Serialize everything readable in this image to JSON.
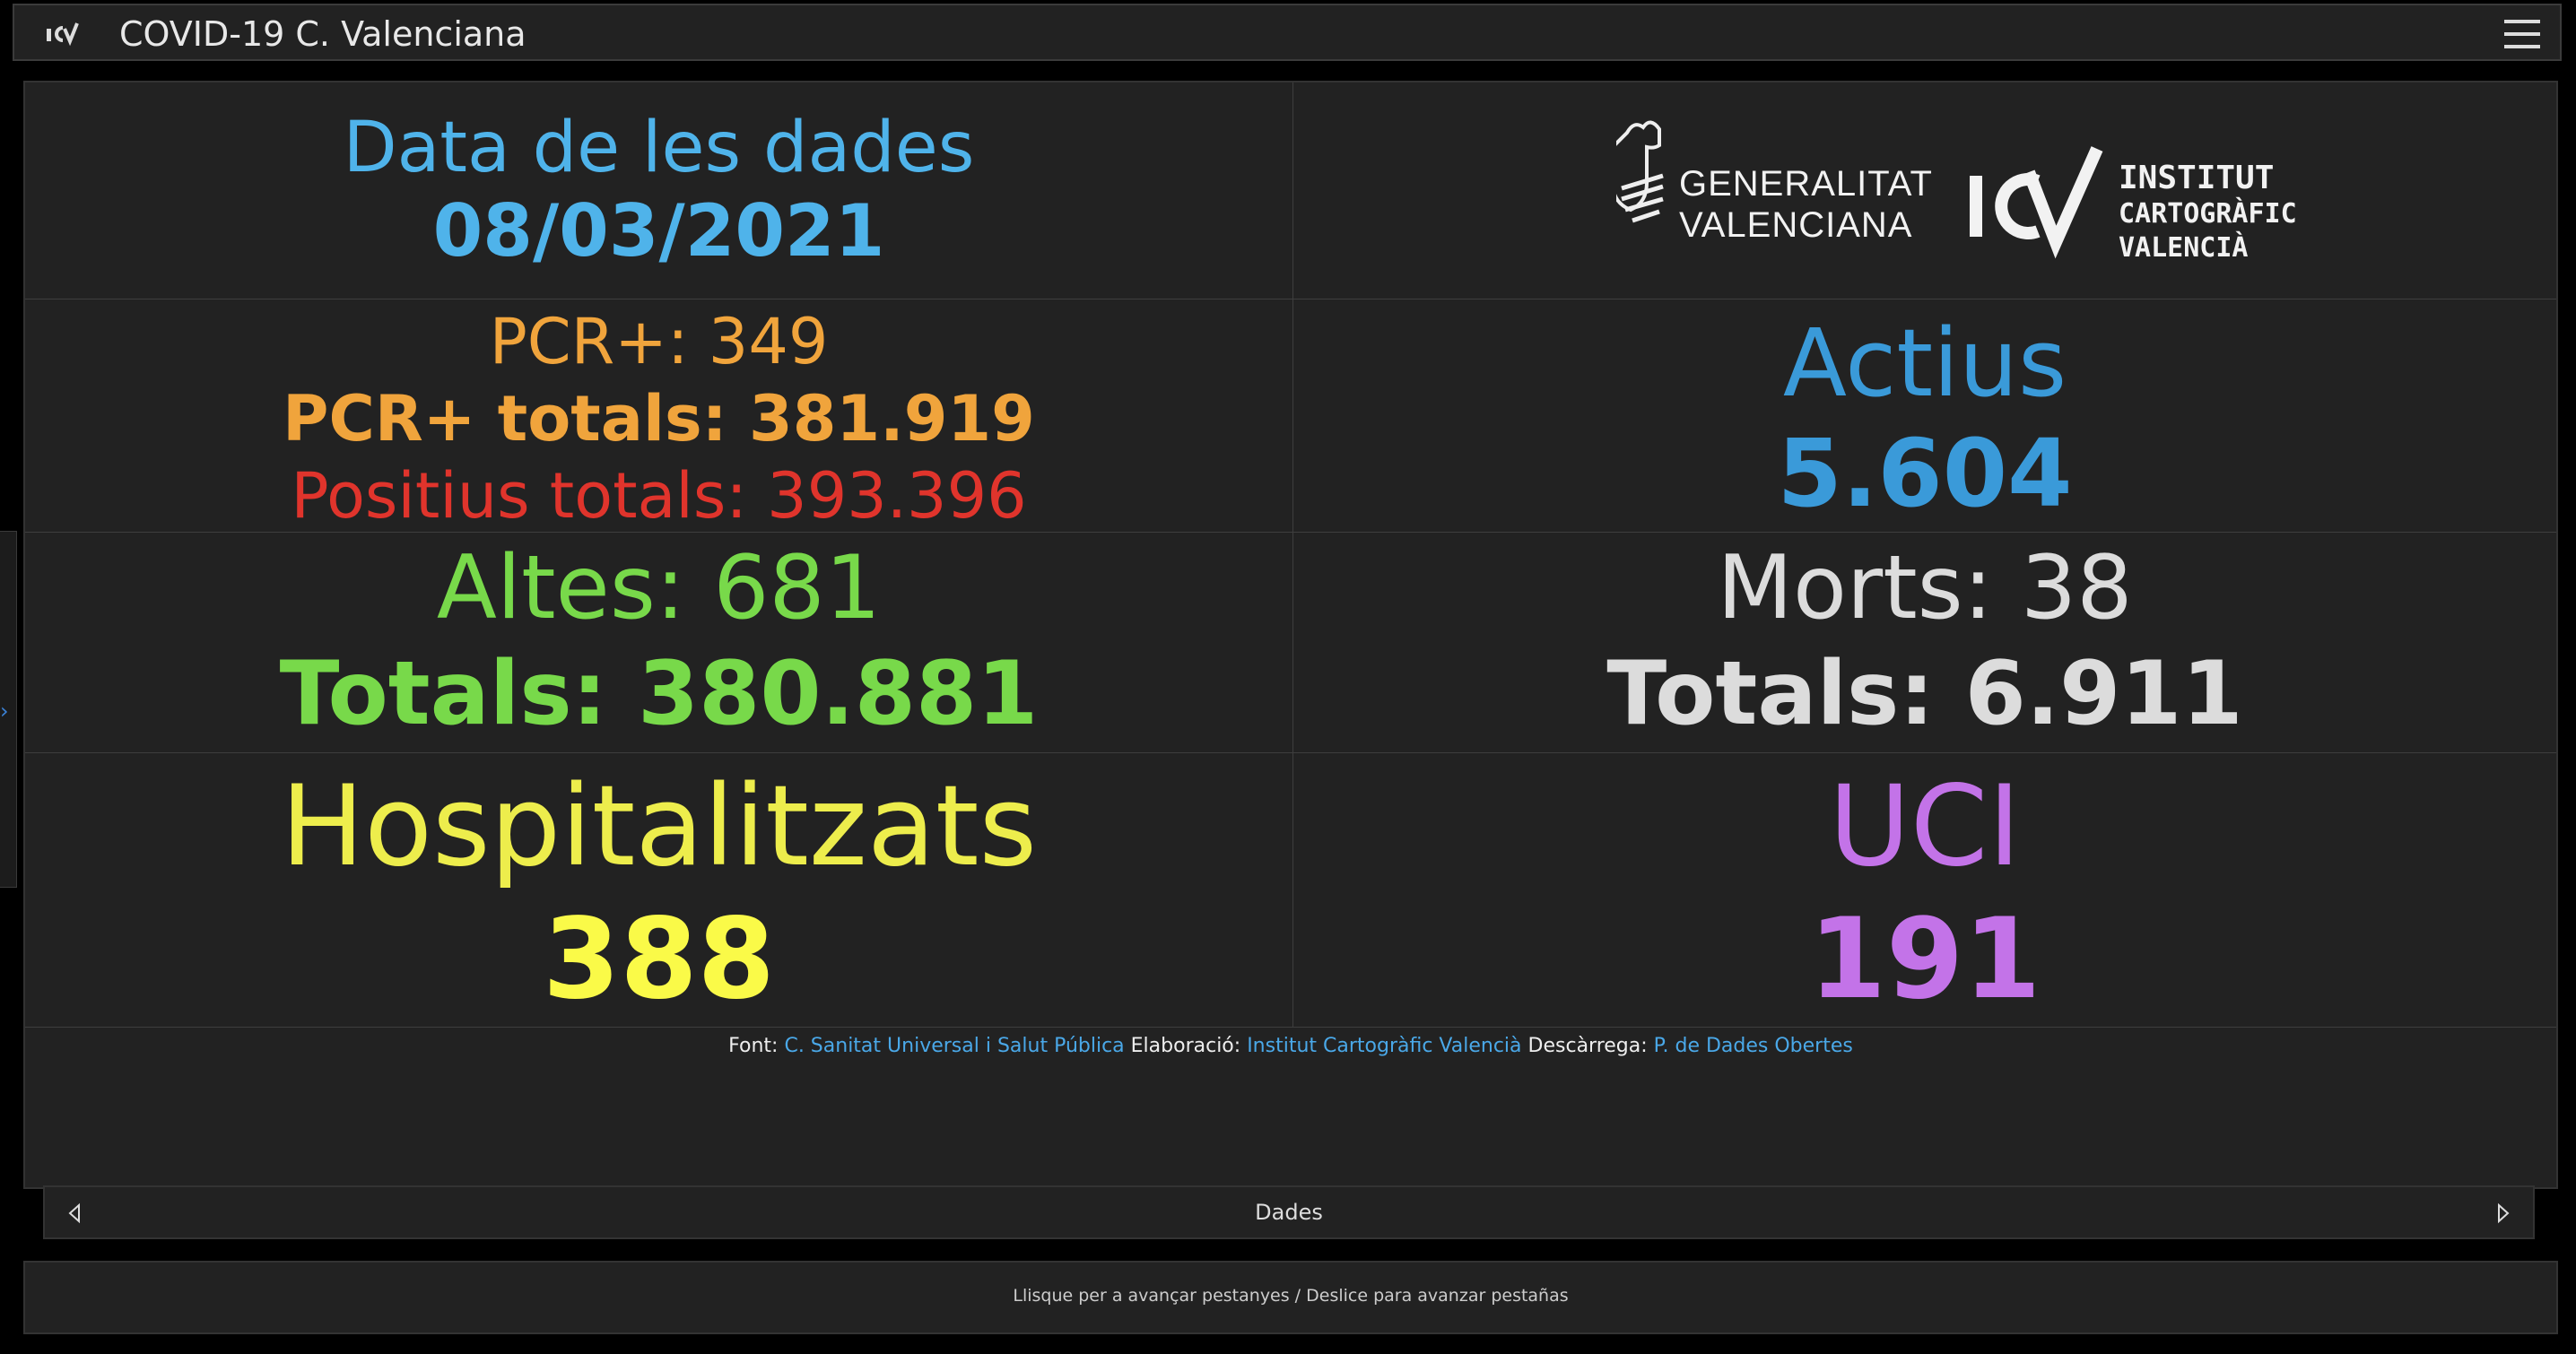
{
  "app": {
    "title": "COVID-19 C. Valenciana",
    "logo_icon": "icv-logo-icon",
    "menu_icon": "hamburger-menu-icon"
  },
  "date_cell": {
    "label": "Data de les dades",
    "value": "08/03/2021"
  },
  "logos": {
    "generalitat_line1": "GENERALITAT",
    "generalitat_line2": "VALENCIANA",
    "icv_line1": "INSTITUT",
    "icv_line2": "CARTOGRÀFIC",
    "icv_line3": "VALENCIÀ"
  },
  "pcr": {
    "daily": "PCR+: 349",
    "totals": "PCR+ totals: 381.919",
    "positives_total": "Positius totals: 393.396"
  },
  "active": {
    "label": "Actius",
    "value": "5.604"
  },
  "discharges": {
    "daily": "Altes: 681",
    "totals": "Totals: 380.881"
  },
  "deaths": {
    "daily": "Morts: 38",
    "totals": "Totals: 6.911"
  },
  "hospitalized": {
    "label": "Hospitalitzats",
    "value": "388"
  },
  "icu": {
    "label": "UCI",
    "value": "191"
  },
  "attribution": {
    "source_label": "Font:",
    "source_link": "C. Sanitat Universal i Salut Pública",
    "elaboration_label": "Elaboració:",
    "elaboration_link": "Institut Cartogràfic Valencià",
    "download_label": "Descàrrega:",
    "download_link": "P. de Dades Obertes"
  },
  "tabs": {
    "current": "Dades",
    "prev_icon": "chevron-left-icon",
    "next_icon": "chevron-right-icon"
  },
  "footer": {
    "hint": "Llisque per a avançar pestanyes / Deslice para avanzar pestañas"
  },
  "colors": {
    "background": "#222222",
    "date": "#4fb3ea",
    "pcr": "#f0a43c",
    "positives": "#e0342c",
    "active": "#3a9ad9",
    "discharges": "#78d94a",
    "deaths": "#dcdcdc",
    "hospitalized": "#eded4c",
    "icu": "#c373e8",
    "link": "#4aa8e8"
  }
}
